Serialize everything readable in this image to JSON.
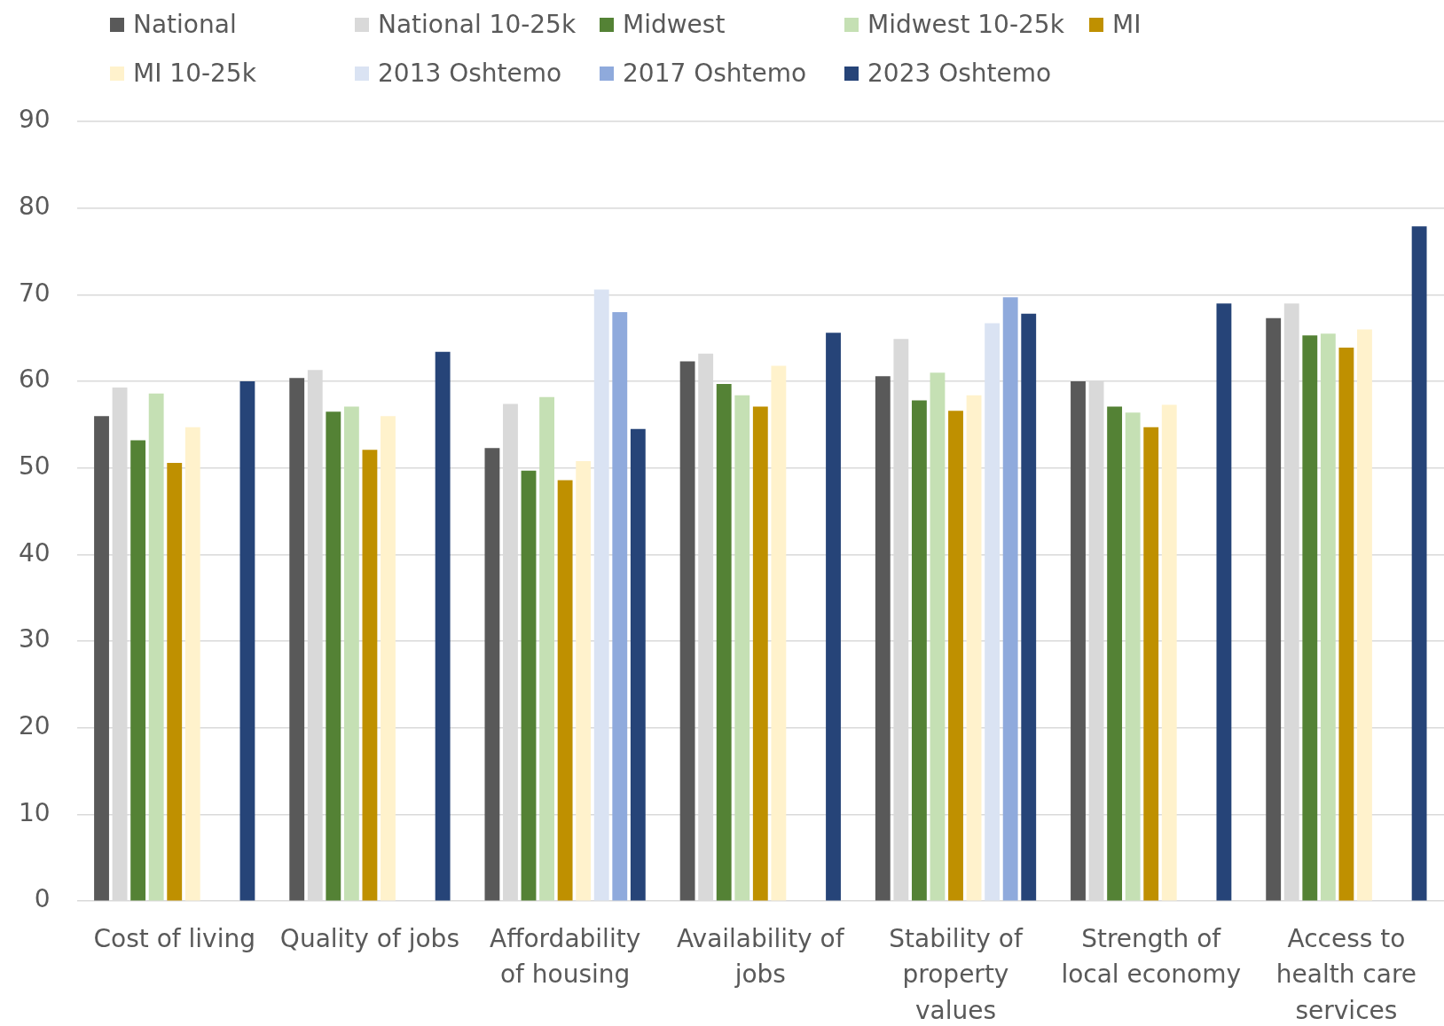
{
  "chart_data": {
    "type": "bar",
    "categories": [
      "Cost of living",
      "Quality of jobs",
      "Affordability of housing",
      "Availability of jobs",
      "Stability of property values",
      "Strength of local economy",
      "Access to health care services"
    ],
    "series": [
      {
        "name": "National",
        "color": "#595959",
        "values": [
          56.0,
          60.4,
          52.3,
          62.3,
          60.6,
          60.0,
          67.3
        ]
      },
      {
        "name": "National 10-25k",
        "color": "#d9d9d9",
        "values": [
          59.3,
          61.3,
          57.4,
          63.2,
          64.9,
          60.0,
          69.0
        ]
      },
      {
        "name": "Midwest",
        "color": "#548235",
        "values": [
          53.2,
          56.5,
          49.7,
          59.7,
          57.8,
          57.1,
          65.3
        ]
      },
      {
        "name": "Midwest 10-25k",
        "color": "#c5e0b4",
        "values": [
          58.6,
          57.1,
          58.2,
          58.4,
          61.0,
          56.4,
          65.5
        ]
      },
      {
        "name": "MI",
        "color": "#bf9000",
        "values": [
          50.6,
          52.1,
          48.6,
          57.1,
          56.6,
          54.7,
          63.9
        ]
      },
      {
        "name": "MI 10-25k",
        "color": "#fff2cc",
        "values": [
          54.7,
          56.0,
          50.8,
          61.8,
          58.4,
          57.3,
          66.0
        ]
      },
      {
        "name": "2013 Oshtemo",
        "color": "#dae3f3",
        "values": [
          null,
          null,
          70.6,
          null,
          66.7,
          null,
          null
        ]
      },
      {
        "name": "2017 Oshtemo",
        "color": "#8faadc",
        "values": [
          null,
          null,
          68.0,
          null,
          69.7,
          null,
          null
        ]
      },
      {
        "name": "2023 Oshtemo",
        "color": "#264478",
        "values": [
          60.0,
          63.4,
          54.5,
          65.6,
          67.8,
          69.0,
          77.9
        ]
      }
    ],
    "ylim": [
      0,
      90
    ],
    "yticks": [
      0,
      10,
      20,
      30,
      40,
      50,
      60,
      70,
      80,
      90
    ],
    "grid": "y",
    "legend": "top"
  }
}
